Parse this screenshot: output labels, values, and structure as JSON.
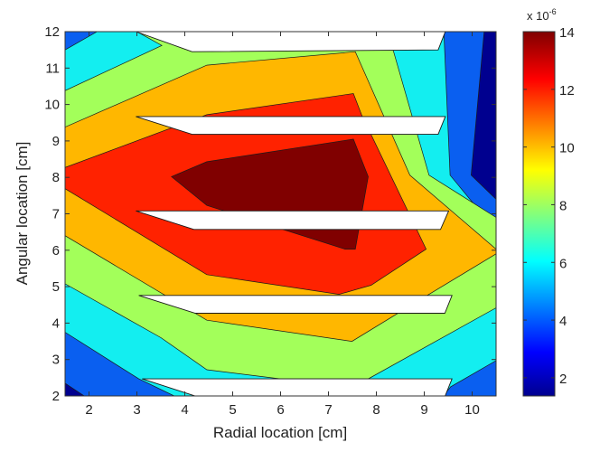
{
  "chart_data": {
    "type": "contour",
    "xlabel": "Radial location [cm]",
    "ylabel": "Angular location [cm]",
    "xlim": [
      1.5,
      10.5
    ],
    "ylim": [
      2,
      12
    ],
    "xticks": [
      "2",
      "3",
      "4",
      "5",
      "6",
      "7",
      "8",
      "9",
      "10"
    ],
    "yticks": [
      "2",
      "3",
      "4",
      "5",
      "6",
      "7",
      "8",
      "9",
      "10",
      "11",
      "12"
    ],
    "colorbar": {
      "range": [
        1.37,
        14
      ],
      "ticks": [
        "2",
        "4",
        "6",
        "8",
        "10",
        "12",
        "14"
      ],
      "multiplier_base": "x 10",
      "multiplier_exp": "-6"
    },
    "background_color": "#0a5ff0",
    "regions": [
      {
        "level": 1.5,
        "color": "#00008f",
        "points": [
          [
            10.25,
            12
          ],
          [
            10.5,
            12
          ],
          [
            10.5,
            7.4
          ],
          [
            9.98,
            8.06
          ]
        ]
      },
      {
        "level": 1.5,
        "color": "#00008f",
        "points": [
          [
            1.5,
            2.35
          ],
          [
            1.9,
            2
          ],
          [
            1.5,
            2
          ]
        ]
      },
      {
        "level": 5,
        "color": "#13eef0",
        "points": [
          [
            1.5,
            3.75
          ],
          [
            3.04,
            2.47
          ],
          [
            3.78,
            2
          ],
          [
            9.4,
            2
          ],
          [
            9.55,
            2.25
          ],
          [
            10.5,
            2.97
          ],
          [
            10.5,
            6.53
          ],
          [
            9.54,
            8.06
          ],
          [
            9.41,
            12
          ],
          [
            2.17,
            12
          ],
          [
            1.5,
            11.5
          ]
        ]
      },
      {
        "level": 7,
        "color": "#a3ff5a",
        "points": [
          [
            1.5,
            5.08
          ],
          [
            3.5,
            3.6
          ],
          [
            4.46,
            2.72
          ],
          [
            6.0,
            2.47
          ],
          [
            7.83,
            2.47
          ],
          [
            10.5,
            4.42
          ],
          [
            10.5,
            6.9
          ],
          [
            9.1,
            8.06
          ],
          [
            8.36,
            11.45
          ],
          [
            8.2,
            12
          ],
          [
            3.0,
            12
          ],
          [
            3.52,
            11.62
          ],
          [
            1.5,
            10.38
          ]
        ]
      },
      {
        "level": 9,
        "color": "#ffb700",
        "points": [
          [
            1.5,
            6.4
          ],
          [
            4.46,
            4.08
          ],
          [
            7.49,
            3.5
          ],
          [
            9.1,
            4.79
          ],
          [
            10.5,
            5.9
          ],
          [
            10.5,
            6.03
          ],
          [
            8.7,
            8.06
          ],
          [
            7.56,
            11.45
          ],
          [
            4.46,
            11.08
          ],
          [
            1.5,
            9.38
          ]
        ]
      },
      {
        "level": 11,
        "color": "#ff2200",
        "points": [
          [
            1.5,
            7.69
          ],
          [
            4.46,
            5.33
          ],
          [
            7.22,
            4.79
          ],
          [
            7.89,
            5.04
          ],
          [
            9.04,
            6.03
          ],
          [
            7.69,
            9.72
          ],
          [
            7.52,
            10.3
          ],
          [
            4.46,
            9.72
          ],
          [
            1.5,
            8.27
          ]
        ]
      },
      {
        "level": 13,
        "color": "#800000",
        "points": [
          [
            3.72,
            8.02
          ],
          [
            4.46,
            8.43
          ],
          [
            7.52,
            9.05
          ],
          [
            7.83,
            8.02
          ],
          [
            7.56,
            6.03
          ],
          [
            7.35,
            6.03
          ],
          [
            4.46,
            7.23
          ]
        ]
      }
    ],
    "masked_regions": [
      [
        [
          2.98,
          12
        ],
        [
          9.44,
          12
        ],
        [
          9.29,
          11.5
        ],
        [
          4.15,
          11.45
        ]
      ],
      [
        [
          2.98,
          9.67
        ],
        [
          9.44,
          9.67
        ],
        [
          9.29,
          9.18
        ],
        [
          4.15,
          9.18
        ]
      ],
      [
        [
          2.98,
          7.08
        ],
        [
          9.51,
          7.08
        ],
        [
          9.34,
          6.57
        ],
        [
          4.19,
          6.57
        ]
      ],
      [
        [
          3.04,
          4.76
        ],
        [
          9.58,
          4.76
        ],
        [
          9.43,
          4.27
        ],
        [
          4.22,
          4.27
        ]
      ],
      [
        [
          3.11,
          2.47
        ],
        [
          9.58,
          2.47
        ],
        [
          9.43,
          1.98
        ],
        [
          4.26,
          1.98
        ]
      ]
    ]
  }
}
